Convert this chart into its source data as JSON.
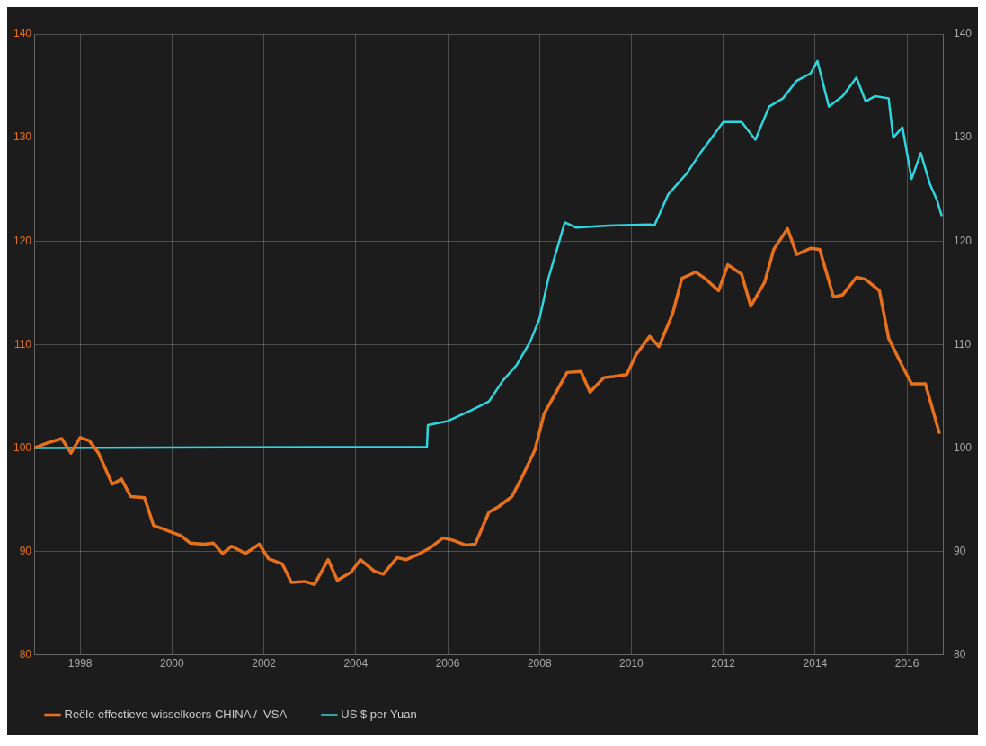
{
  "chart_data": {
    "type": "line",
    "xlim": [
      1997,
      2016.8
    ],
    "xticks": [
      1998,
      2000,
      2002,
      2004,
      2006,
      2008,
      2010,
      2012,
      2014,
      2016
    ],
    "ylim": [
      80,
      140
    ],
    "yticks": [
      80,
      90,
      100,
      110,
      120,
      130,
      140
    ],
    "y2lim": [
      80,
      140
    ],
    "y2ticks": [
      80,
      90,
      100,
      110,
      120,
      130,
      140
    ],
    "grid": true,
    "legend": "bottom left",
    "marker": "none",
    "line_style": "solid",
    "series": [
      {
        "name": "Reële effectieve wisselkoers CHINA /  VSA",
        "color": "#e8701c",
        "x": [
          1997,
          1997.3,
          1997.6,
          1997.8,
          1998,
          1998.2,
          1998.4,
          1998.7,
          1998.9,
          1999.1,
          1999.4,
          1999.6,
          1999.9,
          2000.2,
          2000.4,
          2000.7,
          2000.9,
          2001.1,
          2001.3,
          2001.6,
          2001.9,
          2002.1,
          2002.4,
          2002.6,
          2002.9,
          2003.1,
          2003.4,
          2003.6,
          2003.9,
          2004.1,
          2004.4,
          2004.6,
          2004.9,
          2005.1,
          2005.4,
          2005.6,
          2005.9,
          2006.1,
          2006.4,
          2006.6,
          2006.9,
          2007.1,
          2007.4,
          2007.6,
          2007.9,
          2008.1,
          2008.4,
          2008.6,
          2008.9,
          2009.1,
          2009.4,
          2009.6,
          2009.9,
          2010.1,
          2010.4,
          2010.6,
          2010.9,
          2011.1,
          2011.4,
          2011.6,
          2011.9,
          2012.1,
          2012.4,
          2012.6,
          2012.9,
          2013.1,
          2013.4,
          2013.6,
          2013.9,
          2014.1,
          2014.4,
          2014.6,
          2014.9,
          2015.1,
          2015.4,
          2015.6,
          2015.9,
          2016.1,
          2016.4,
          2016.7
        ],
        "values": [
          100,
          100.5,
          100.9,
          99.5,
          101,
          100.7,
          99.5,
          96.5,
          97,
          95.3,
          95.2,
          92.5,
          92,
          91.5,
          90.8,
          90.7,
          90.8,
          89.8,
          90.5,
          89.8,
          90.7,
          89.3,
          88.8,
          87,
          87.1,
          86.8,
          89.2,
          87.2,
          88,
          89.2,
          88.1,
          87.8,
          89.4,
          89.2,
          89.8,
          90.3,
          91.3,
          91.1,
          90.6,
          90.7,
          93.8,
          94.3,
          95.3,
          97,
          99.8,
          103.3,
          105.7,
          107.3,
          107.4,
          105.4,
          106.8,
          106.9,
          107.1,
          109,
          110.8,
          109.8,
          113,
          116.4,
          117,
          116.4,
          115.2,
          117.7,
          116.8,
          113.7,
          116,
          119.2,
          121.2,
          118.7,
          119.3,
          119.2,
          114.6,
          114.8,
          116.5,
          116.3,
          115.2,
          110.6,
          107.9,
          106.2,
          106.2,
          101.5
        ]
      },
      {
        "name": "US $ per Yuan",
        "color": "#2fd6df",
        "axis": "y2",
        "x": [
          1997,
          2005.55,
          2005.57,
          2006,
          2006.5,
          2006.9,
          2007.2,
          2007.5,
          2007.8,
          2008,
          2008.2,
          2008.4,
          2008.55,
          2008.8,
          2009.5,
          2010.4,
          2010.5,
          2010.6,
          2010.8,
          2011.2,
          2011.5,
          2011.8,
          2012,
          2012.4,
          2012.7,
          2013,
          2013.3,
          2013.6,
          2013.9,
          2014.05,
          2014.3,
          2014.6,
          2014.9,
          2015.1,
          2015.3,
          2015.6,
          2015.7,
          2015.9,
          2016.1,
          2016.3,
          2016.5,
          2016.65,
          2016.75
        ],
        "values": [
          100,
          100.1,
          102.2,
          102.6,
          103.6,
          104.5,
          106.5,
          108,
          110.3,
          112.5,
          116.5,
          119.5,
          121.8,
          121.3,
          121.5,
          121.6,
          121.5,
          122.5,
          124.5,
          126.5,
          128.5,
          130.3,
          131.5,
          131.5,
          129.8,
          133,
          133.8,
          135.5,
          136.2,
          137.4,
          133,
          134,
          135.8,
          133.5,
          134,
          133.8,
          130,
          131,
          126,
          128.5,
          125.5,
          124,
          122.5
        ]
      }
    ]
  }
}
